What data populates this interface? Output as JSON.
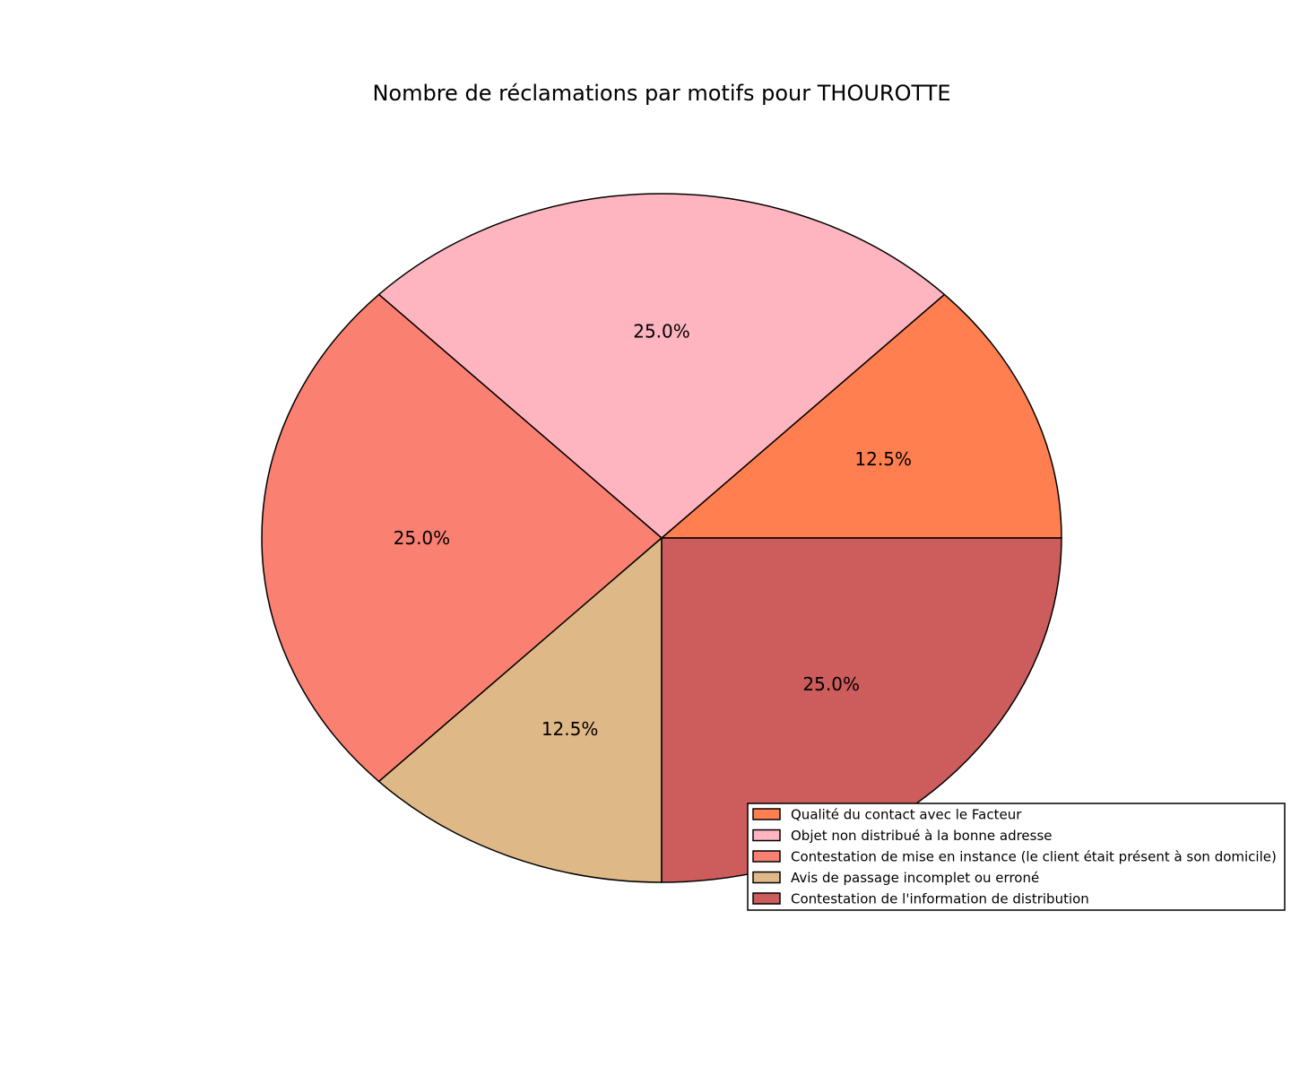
{
  "chart_data": {
    "type": "pie",
    "title": "Nombre de réclamations par motifs pour THOUROTTE",
    "start_angle_deg": 0,
    "direction": "counterclockwise",
    "legend_position": "bottom-right",
    "slices": [
      {
        "label": "Qualité du contact avec le Facteur",
        "value": 12.5,
        "value_label": "12.5%",
        "color": "#ff7f50"
      },
      {
        "label": "Objet non distribué à la bonne adresse",
        "value": 25.0,
        "value_label": "25.0%",
        "color": "#ffb5c0"
      },
      {
        "label": "Contestation de mise en instance (le client était présent à son domicile)",
        "value": 25.0,
        "value_label": "25.0%",
        "color": "#fa8072"
      },
      {
        "label": "Avis de passage incomplet ou erroné",
        "value": 12.5,
        "value_label": "12.5%",
        "color": "#deb887"
      },
      {
        "label": "Contestation de l'information de distribution",
        "value": 25.0,
        "value_label": "25.0%",
        "color": "#cd5c5c"
      }
    ]
  }
}
